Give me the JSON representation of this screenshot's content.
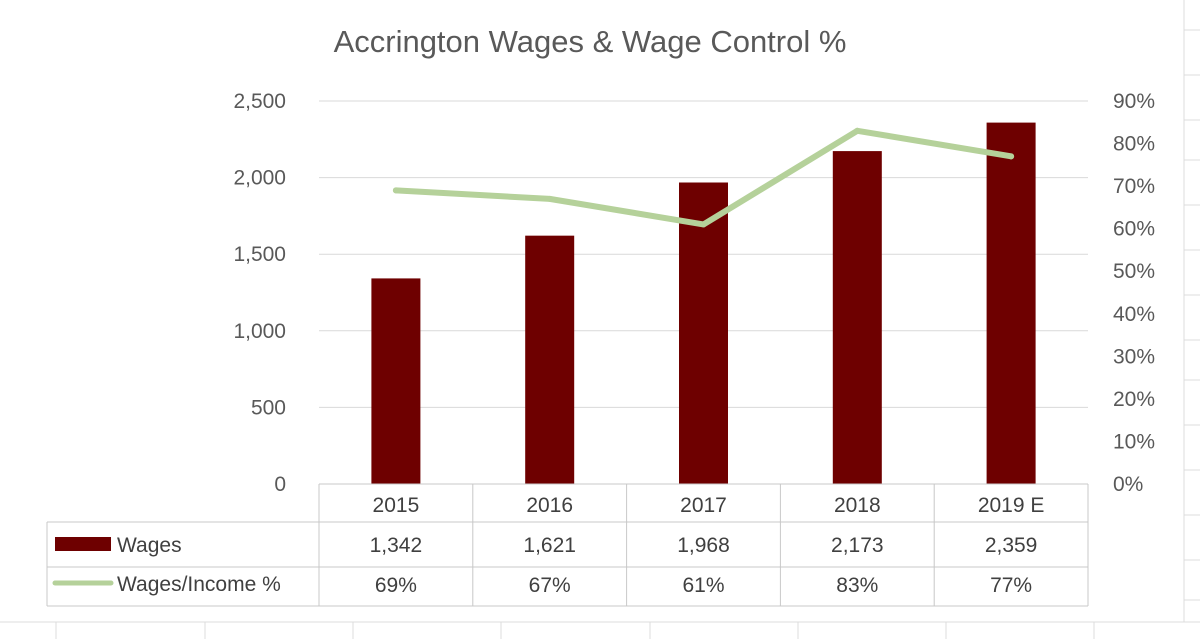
{
  "chart_data": {
    "type": "bar",
    "title": "Accrington Wages & Wage Control %",
    "categories": [
      "2015",
      "2016",
      "2017",
      "2018",
      "2019 E"
    ],
    "series": [
      {
        "name": "Wages",
        "kind": "bar",
        "axis": "left",
        "color": "#6E0000",
        "values": [
          1342,
          1621,
          1968,
          2173,
          2359
        ],
        "labels": [
          "1,342",
          "1,621",
          "1,968",
          "2,173",
          "2,359"
        ]
      },
      {
        "name": "Wages/Income %",
        "kind": "line",
        "axis": "right",
        "color": "#B5D19A",
        "values": [
          69,
          67,
          61,
          83,
          77
        ],
        "labels": [
          "69%",
          "67%",
          "61%",
          "83%",
          "77%"
        ]
      }
    ],
    "y_left": {
      "range": [
        0,
        2500
      ],
      "ticks": [
        0,
        500,
        1000,
        1500,
        2000,
        2500
      ],
      "tick_labels": [
        "0",
        "500",
        "1,000",
        "1,500",
        "2,000",
        "2,500"
      ]
    },
    "y_right": {
      "range": [
        0,
        90
      ],
      "ticks": [
        0,
        10,
        20,
        30,
        40,
        50,
        60,
        70,
        80,
        90
      ],
      "tick_labels": [
        "0%",
        "10%",
        "20%",
        "30%",
        "40%",
        "50%",
        "60%",
        "70%",
        "80%",
        "90%"
      ]
    },
    "grid": true,
    "data_table": true
  }
}
